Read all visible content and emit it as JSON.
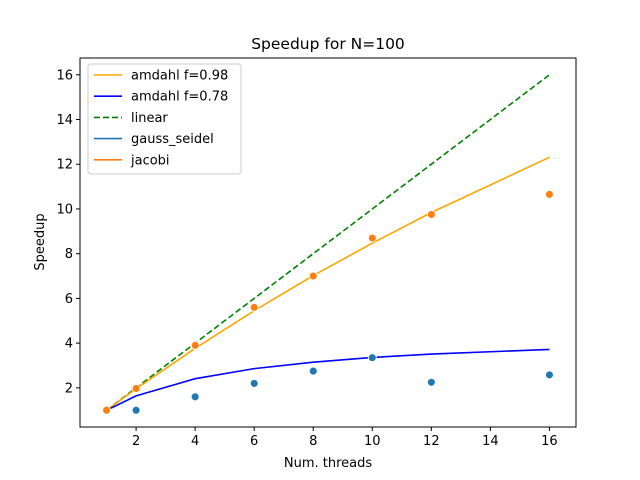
{
  "chart_data": {
    "type": "line",
    "title": "Speedup for N=100",
    "xlabel": "Num. threads",
    "ylabel": "Speedup",
    "xlim": [
      0.1,
      16.9
    ],
    "ylim": [
      0.25,
      16.75
    ],
    "xticks": [
      2,
      4,
      6,
      8,
      10,
      12,
      14,
      16
    ],
    "yticks": [
      2,
      4,
      6,
      8,
      10,
      12,
      14,
      16
    ],
    "grid": false,
    "legend_position": "top-left",
    "series": [
      {
        "name": "amdahl f=0.98",
        "kind": "line",
        "style": "solid",
        "color": "#ffa500",
        "x": [
          1,
          2,
          4,
          6,
          8,
          10,
          12,
          16
        ],
        "y": [
          1.0,
          1.96,
          3.77,
          5.45,
          7.02,
          8.47,
          9.84,
          12.31
        ]
      },
      {
        "name": "amdahl f=0.78",
        "kind": "line",
        "style": "solid",
        "color": "#0000ff",
        "x": [
          1,
          2,
          4,
          6,
          8,
          10,
          12,
          16
        ],
        "y": [
          1.0,
          1.64,
          2.41,
          2.86,
          3.15,
          3.36,
          3.51,
          3.72
        ]
      },
      {
        "name": "linear",
        "kind": "line",
        "style": "dashed",
        "color": "#008000",
        "x": [
          1,
          16
        ],
        "y": [
          1,
          16
        ]
      },
      {
        "name": "gauss_seidel",
        "kind": "scatter",
        "color": "#1f77b4",
        "x": [
          1,
          2,
          4,
          6,
          8,
          10,
          12,
          16
        ],
        "y": [
          1.0,
          1.0,
          1.6,
          2.2,
          2.75,
          3.35,
          2.25,
          2.58
        ]
      },
      {
        "name": "jacobi",
        "kind": "scatter",
        "color": "#ff7f0e",
        "x": [
          1,
          2,
          4,
          6,
          8,
          10,
          12,
          16
        ],
        "y": [
          1.0,
          1.97,
          3.9,
          5.6,
          7.0,
          8.7,
          9.75,
          10.65
        ]
      }
    ]
  }
}
